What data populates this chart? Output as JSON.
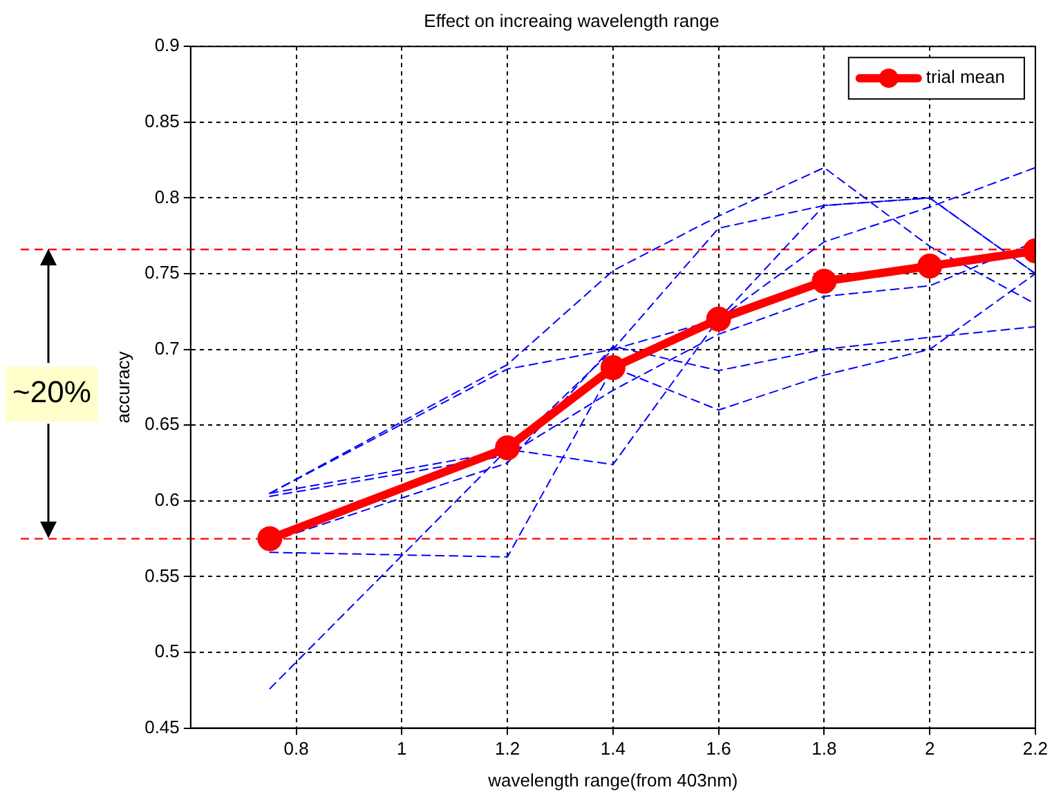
{
  "chart_data": {
    "type": "line",
    "title": "Effect on increaing wavelength range",
    "xlabel": "wavelength range(from 403nm)",
    "ylabel": "accuracy",
    "x": [
      0.75,
      1.2,
      1.4,
      1.6,
      1.8,
      2.0,
      2.2
    ],
    "series": [
      {
        "color": "#0000ff",
        "line_style": "dashed",
        "marker": "none",
        "values": [
          0.605,
          0.69,
          0.752,
          0.788,
          0.82,
          0.768,
          0.73
        ]
      },
      {
        "color": "#0000ff",
        "line_style": "dashed",
        "marker": "none",
        "values": [
          0.605,
          0.687,
          0.7,
          0.78,
          0.795,
          0.8,
          0.75
        ]
      },
      {
        "color": "#0000ff",
        "line_style": "dashed",
        "marker": "none",
        "values": [
          0.605,
          0.633,
          0.7,
          0.72,
          0.771,
          0.794,
          0.82
        ]
      },
      {
        "color": "#0000ff",
        "line_style": "dashed",
        "marker": "none",
        "values": [
          0.603,
          0.63,
          0.673,
          0.71,
          0.735,
          0.742,
          0.771
        ]
      },
      {
        "color": "#0000ff",
        "line_style": "dashed",
        "marker": "none",
        "values": [
          0.573,
          0.625,
          0.702,
          0.686,
          0.7,
          0.708,
          0.715
        ]
      },
      {
        "color": "#0000ff",
        "line_style": "dashed",
        "marker": "none",
        "values": [
          0.566,
          0.563,
          0.688,
          0.66,
          0.683,
          0.7,
          0.75
        ]
      },
      {
        "color": "#0000ff",
        "line_style": "dashed",
        "marker": "none",
        "values": [
          0.476,
          0.634,
          0.624,
          0.72,
          0.795,
          0.8,
          0.75
        ]
      },
      {
        "name": "trial mean",
        "color": "#ff0000",
        "line_style": "solid",
        "marker": "circle",
        "values": [
          0.575,
          0.635,
          0.688,
          0.72,
          0.745,
          0.755,
          0.765
        ]
      }
    ],
    "xlim": [
      0.6,
      2.2
    ],
    "xticks": [
      0.8,
      1,
      1.2,
      1.4,
      1.6,
      1.8,
      2,
      2.2
    ],
    "ylim": [
      0.45,
      0.9
    ],
    "yticks": [
      0.45,
      0.5,
      0.55,
      0.6,
      0.65,
      0.7,
      0.75,
      0.8,
      0.85,
      0.9
    ],
    "ref_lines": [
      {
        "axis": "y",
        "value": 0.766,
        "color": "#ff0000",
        "line_style": "dashed"
      },
      {
        "axis": "y",
        "value": 0.575,
        "color": "#ff0000",
        "line_style": "dashed"
      }
    ],
    "annotations": [
      "~20%"
    ],
    "grid": true,
    "legend": "top right"
  }
}
